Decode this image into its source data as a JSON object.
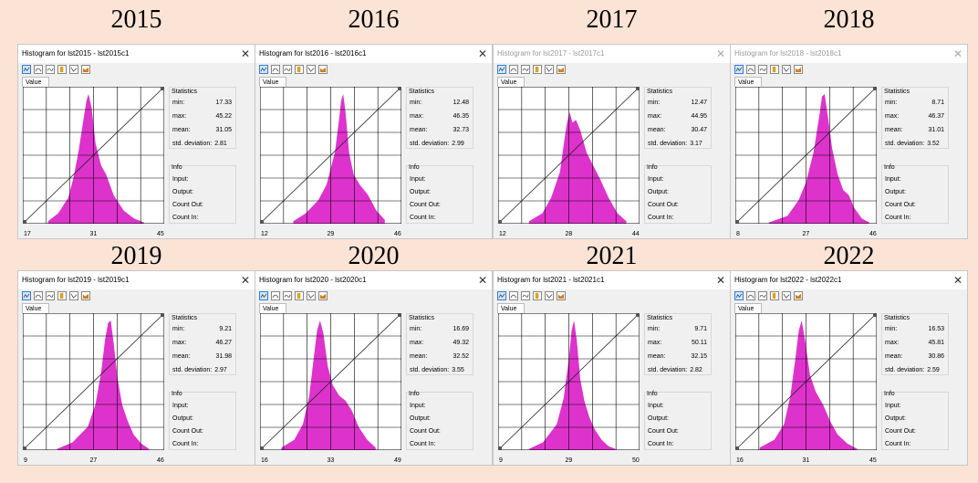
{
  "labels": {
    "tab": "Value",
    "stats_header": "Statistics",
    "info_header": "Info",
    "min": "min:",
    "max": "max:",
    "mean": "mean:",
    "stddev": "std. deviation:",
    "input": "Input:",
    "output": "Output:",
    "count_out": "Count Out:",
    "count_in": "Count In:",
    "close": "✕"
  },
  "panels": [
    {
      "year": "2015",
      "title": "Histogram for lst2015 - lst2015c1",
      "active": true,
      "min": "17.33",
      "max": "45.22",
      "mean": "31.05",
      "stddev": "2.81",
      "x_ticks": [
        "17",
        "31",
        "45"
      ],
      "x_range": [
        17,
        45
      ],
      "bins": [
        [
          22,
          0.02
        ],
        [
          24,
          0.08
        ],
        [
          26,
          0.2
        ],
        [
          27,
          0.35
        ],
        [
          28,
          0.55
        ],
        [
          29,
          0.8
        ],
        [
          29.6,
          0.95
        ],
        [
          30,
          1.0
        ],
        [
          30.6,
          0.9
        ],
        [
          31.4,
          0.62
        ],
        [
          32.5,
          0.45
        ],
        [
          33.5,
          0.38
        ],
        [
          35,
          0.22
        ],
        [
          37,
          0.1
        ],
        [
          39,
          0.04
        ],
        [
          41,
          0.01
        ]
      ]
    },
    {
      "year": "2016",
      "title": "Histogram for lst2016 - lst2016c1",
      "active": true,
      "min": "12.48",
      "max": "46.35",
      "mean": "32.73",
      "stddev": "2.99",
      "x_ticks": [
        "12",
        "29",
        "46"
      ],
      "x_range": [
        12,
        46
      ],
      "bins": [
        [
          20,
          0.02
        ],
        [
          23,
          0.08
        ],
        [
          26,
          0.18
        ],
        [
          28,
          0.3
        ],
        [
          30,
          0.55
        ],
        [
          31,
          0.8
        ],
        [
          31.5,
          0.95
        ],
        [
          32,
          1.0
        ],
        [
          32.6,
          0.85
        ],
        [
          33.4,
          0.55
        ],
        [
          34.5,
          0.38
        ],
        [
          36,
          0.3
        ],
        [
          38,
          0.22
        ],
        [
          40,
          0.1
        ],
        [
          42,
          0.03
        ]
      ]
    },
    {
      "year": "2017",
      "title": "Histogram for lst2017 - lst2017c1",
      "active": false,
      "min": "12.47",
      "max": "44.95",
      "mean": "30.47",
      "stddev": "3.17",
      "x_ticks": [
        "12",
        "28",
        "44"
      ],
      "x_range": [
        12,
        44
      ],
      "bins": [
        [
          19,
          0.02
        ],
        [
          22,
          0.08
        ],
        [
          24,
          0.2
        ],
        [
          26,
          0.4
        ],
        [
          27,
          0.65
        ],
        [
          27.6,
          0.78
        ],
        [
          28.2,
          0.86
        ],
        [
          28.8,
          0.78
        ],
        [
          29.6,
          0.8
        ],
        [
          30.6,
          0.72
        ],
        [
          32,
          0.55
        ],
        [
          33.5,
          0.45
        ],
        [
          35,
          0.35
        ],
        [
          37,
          0.2
        ],
        [
          39,
          0.08
        ],
        [
          41,
          0.02
        ]
      ]
    },
    {
      "year": "2018",
      "title": "Histogram for lst2018 - lst2018c1",
      "active": false,
      "min": "8.71",
      "max": "46.37",
      "mean": "31.01",
      "stddev": "3.52",
      "x_ticks": [
        "8",
        "27",
        "46"
      ],
      "x_range": [
        8,
        46
      ],
      "bins": [
        [
          17,
          0.01
        ],
        [
          22,
          0.06
        ],
        [
          25,
          0.18
        ],
        [
          27,
          0.32
        ],
        [
          29,
          0.55
        ],
        [
          30.5,
          0.82
        ],
        [
          31.3,
          0.98
        ],
        [
          32,
          1.0
        ],
        [
          33,
          0.8
        ],
        [
          34,
          0.58
        ],
        [
          35.5,
          0.38
        ],
        [
          37,
          0.26
        ],
        [
          38.5,
          0.22
        ],
        [
          40,
          0.12
        ],
        [
          42,
          0.04
        ],
        [
          44,
          0.01
        ]
      ]
    },
    {
      "year": "2019",
      "title": "Histogram for lst2019 - lst2019c1",
      "active": true,
      "min": "9.21",
      "max": "46.27",
      "mean": "31.98",
      "stddev": "2.97",
      "x_ticks": [
        "9",
        "27",
        "46"
      ],
      "x_range": [
        9,
        46
      ],
      "bins": [
        [
          18,
          0.01
        ],
        [
          22,
          0.06
        ],
        [
          26,
          0.18
        ],
        [
          28,
          0.35
        ],
        [
          29.5,
          0.6
        ],
        [
          30.5,
          0.85
        ],
        [
          31.3,
          0.98
        ],
        [
          32,
          1.0
        ],
        [
          32.8,
          0.82
        ],
        [
          33.8,
          0.55
        ],
        [
          35,
          0.35
        ],
        [
          36.5,
          0.22
        ],
        [
          38,
          0.12
        ],
        [
          40,
          0.05
        ],
        [
          42,
          0.01
        ]
      ]
    },
    {
      "year": "2020",
      "title": "Histogram for lst2020 - lst2020c1",
      "active": true,
      "min": "16.69",
      "max": "49.32",
      "mean": "32.52",
      "stddev": "3.55",
      "x_ticks": [
        "16",
        "33",
        "49"
      ],
      "x_range": [
        16,
        49
      ],
      "bins": [
        [
          21,
          0.02
        ],
        [
          24,
          0.08
        ],
        [
          26,
          0.2
        ],
        [
          27.5,
          0.42
        ],
        [
          28.5,
          0.7
        ],
        [
          29.3,
          0.92
        ],
        [
          30,
          1.0
        ],
        [
          30.8,
          0.9
        ],
        [
          31.8,
          0.65
        ],
        [
          33,
          0.5
        ],
        [
          34.5,
          0.42
        ],
        [
          36,
          0.38
        ],
        [
          37.5,
          0.3
        ],
        [
          39,
          0.18
        ],
        [
          41,
          0.08
        ],
        [
          43,
          0.02
        ]
      ]
    },
    {
      "year": "2021",
      "title": "Histogram for lst2021 - lst2021c1",
      "active": true,
      "min": "9.71",
      "max": "50.11",
      "mean": "32.15",
      "stddev": "2.82",
      "x_ticks": [
        "9",
        "29",
        "50"
      ],
      "x_range": [
        9,
        50
      ],
      "bins": [
        [
          18,
          0.01
        ],
        [
          22,
          0.06
        ],
        [
          26,
          0.2
        ],
        [
          28,
          0.4
        ],
        [
          29.5,
          0.7
        ],
        [
          30.3,
          0.92
        ],
        [
          31,
          1.0
        ],
        [
          31.8,
          0.85
        ],
        [
          32.8,
          0.55
        ],
        [
          34,
          0.38
        ],
        [
          35.5,
          0.25
        ],
        [
          37,
          0.16
        ],
        [
          39,
          0.08
        ],
        [
          41,
          0.03
        ],
        [
          43,
          0.01
        ]
      ]
    },
    {
      "year": "2022",
      "title": "Histogram for lst2022 - lst2022c1",
      "active": true,
      "min": "16.53",
      "max": "45.81",
      "mean": "30.86",
      "stddev": "2.59",
      "x_ticks": [
        "16",
        "31",
        "45"
      ],
      "x_range": [
        16,
        45
      ],
      "bins": [
        [
          21,
          0.02
        ],
        [
          24,
          0.08
        ],
        [
          26,
          0.2
        ],
        [
          27.3,
          0.42
        ],
        [
          28.3,
          0.7
        ],
        [
          29,
          0.92
        ],
        [
          29.6,
          1.0
        ],
        [
          30.3,
          0.85
        ],
        [
          31.3,
          0.58
        ],
        [
          32.5,
          0.45
        ],
        [
          34,
          0.35
        ],
        [
          35.5,
          0.22
        ],
        [
          37,
          0.12
        ],
        [
          39,
          0.05
        ],
        [
          41,
          0.01
        ]
      ]
    }
  ],
  "colors": {
    "histogram": "#dd33cc",
    "grid": "#000000",
    "diagonal": "#222222"
  }
}
